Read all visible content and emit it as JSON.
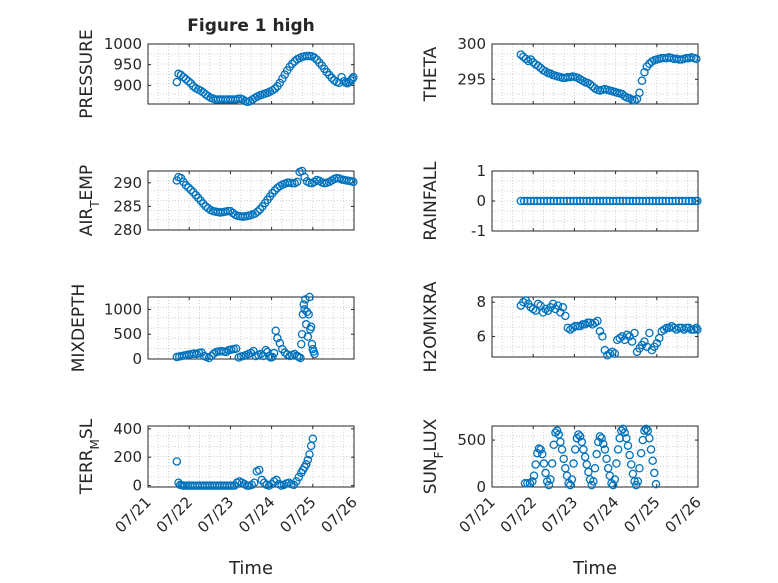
{
  "figure": {
    "title": "Figure 1 high",
    "xlabel": "Time"
  },
  "x_ticks": [
    "07/21",
    "07/22",
    "07/23",
    "07/24",
    "07/25",
    "07/26"
  ],
  "marker_color": "#0072bd",
  "chart_data": [
    {
      "id": "pressure",
      "type": "scatter",
      "ylabel": "PRESSURE",
      "ylabel_sub": "",
      "ylim": [
        855,
        1000
      ],
      "yticks": [
        900,
        950,
        1000
      ],
      "xlim": [
        "07/21",
        "07/26"
      ],
      "x_days": [
        0.7,
        0.74,
        0.8,
        0.86,
        0.92,
        0.98,
        1.04,
        1.1,
        1.16,
        1.22,
        1.28,
        1.34,
        1.4,
        1.46,
        1.52,
        1.58,
        1.64,
        1.7,
        1.76,
        1.82,
        1.88,
        1.94,
        2.0,
        2.06,
        2.12,
        2.18,
        2.24,
        2.3,
        2.36,
        2.42,
        2.48,
        2.54,
        2.6,
        2.66,
        2.72,
        2.78,
        2.84,
        2.9,
        2.96,
        3.02,
        3.08,
        3.14,
        3.2,
        3.26,
        3.32,
        3.38,
        3.44,
        3.5,
        3.56,
        3.62,
        3.68,
        3.74,
        3.8,
        3.86,
        3.92,
        3.98,
        4.04,
        4.1,
        4.16,
        4.22,
        4.28,
        4.34,
        4.4,
        4.46,
        4.52,
        4.58,
        4.64,
        4.7,
        4.76,
        4.8,
        4.84,
        4.88,
        4.92,
        4.96,
        4.985
      ],
      "y": [
        908,
        928,
        925,
        920,
        915,
        910,
        905,
        898,
        893,
        890,
        887,
        883,
        878,
        874,
        870,
        868,
        866,
        866,
        866,
        866,
        866,
        866,
        866,
        866,
        866,
        867,
        868,
        866,
        862,
        860,
        862,
        866,
        870,
        873,
        876,
        878,
        880,
        882,
        885,
        888,
        892,
        898,
        906,
        916,
        926,
        936,
        945,
        952,
        958,
        963,
        966,
        969,
        970,
        971,
        971,
        970,
        967,
        962,
        955,
        948,
        940,
        932,
        925,
        918,
        912,
        908,
        906,
        920,
        910,
        907,
        905,
        908,
        912,
        916,
        920
      ]
    },
    {
      "id": "theta",
      "type": "scatter",
      "ylabel": "THETA",
      "ylabel_sub": "",
      "ylim": [
        291.5,
        300
      ],
      "yticks": [
        295,
        300
      ],
      "xlim": [
        "07/21",
        "07/26"
      ],
      "x_days": [
        0.7,
        0.76,
        0.82,
        0.88,
        0.94,
        1.0,
        1.06,
        1.12,
        1.18,
        1.24,
        1.3,
        1.36,
        1.42,
        1.48,
        1.54,
        1.6,
        1.66,
        1.72,
        1.78,
        1.84,
        1.9,
        1.96,
        2.02,
        2.08,
        2.14,
        2.2,
        2.26,
        2.32,
        2.38,
        2.44,
        2.5,
        2.56,
        2.62,
        2.68,
        2.74,
        2.8,
        2.86,
        2.92,
        2.98,
        3.04,
        3.1,
        3.16,
        3.22,
        3.28,
        3.34,
        3.4,
        3.46,
        3.52,
        3.58,
        3.64,
        3.7,
        3.76,
        3.82,
        3.88,
        3.94,
        4.0,
        4.06,
        4.12,
        4.18,
        4.24,
        4.3,
        4.36,
        4.42,
        4.48,
        4.54,
        4.6,
        4.66,
        4.72,
        4.78,
        4.84,
        4.9,
        4.96
      ],
      "y": [
        298.5,
        298.2,
        297.9,
        297.6,
        297.8,
        297.4,
        297.1,
        296.9,
        296.6,
        296.3,
        296.1,
        295.9,
        295.8,
        295.6,
        295.5,
        295.4,
        295.3,
        295.2,
        295.2,
        295.3,
        295.3,
        295.4,
        295.3,
        295.2,
        295.0,
        294.8,
        294.6,
        294.5,
        294.3,
        294.0,
        293.7,
        293.5,
        293.4,
        293.5,
        293.6,
        293.5,
        293.4,
        293.3,
        293.2,
        293.1,
        293.0,
        292.9,
        292.6,
        292.4,
        292.3,
        292.1,
        292.0,
        292.2,
        293.1,
        294.8,
        296.0,
        296.8,
        297.2,
        297.5,
        297.7,
        297.8,
        297.9,
        298.0,
        298.0,
        298.0,
        298.1,
        298.0,
        297.9,
        297.9,
        297.8,
        297.8,
        297.9,
        298.0,
        298.0,
        298.1,
        298.0,
        297.9
      ]
    },
    {
      "id": "air_temp",
      "type": "scatter",
      "ylabel": "AIR",
      "ylabel_sub": "T",
      "ylabel_rest": "EMP",
      "ylim": [
        280,
        292.5
      ],
      "yticks": [
        280,
        285,
        290
      ],
      "xlim": [
        "07/21",
        "07/26"
      ],
      "x_days": [
        0.7,
        0.74,
        0.8,
        0.86,
        0.92,
        0.98,
        1.04,
        1.1,
        1.16,
        1.22,
        1.28,
        1.34,
        1.4,
        1.46,
        1.52,
        1.58,
        1.64,
        1.7,
        1.76,
        1.82,
        1.88,
        1.94,
        2.0,
        2.06,
        2.12,
        2.18,
        2.24,
        2.3,
        2.36,
        2.42,
        2.48,
        2.54,
        2.6,
        2.66,
        2.72,
        2.78,
        2.84,
        2.9,
        2.96,
        3.02,
        3.08,
        3.14,
        3.2,
        3.26,
        3.32,
        3.38,
        3.44,
        3.5,
        3.56,
        3.62,
        3.68,
        3.74,
        3.8,
        3.86,
        3.92,
        3.98,
        4.04,
        4.1,
        4.16,
        4.22,
        4.28,
        4.34,
        4.4,
        4.46,
        4.52,
        4.58,
        4.64,
        4.7,
        4.76,
        4.82,
        4.88,
        4.94,
        4.985
      ],
      "y": [
        290.5,
        291.2,
        291.0,
        290.2,
        289.5,
        289.0,
        288.5,
        288.0,
        287.4,
        286.8,
        286.2,
        285.6,
        285.0,
        284.6,
        284.2,
        284.0,
        283.9,
        283.8,
        283.7,
        283.8,
        283.9,
        284.0,
        284.0,
        283.6,
        283.2,
        283.0,
        282.9,
        282.8,
        282.9,
        283.0,
        283.1,
        283.3,
        283.5,
        283.9,
        284.4,
        285.0,
        285.7,
        286.4,
        287.1,
        287.8,
        288.4,
        288.9,
        289.3,
        289.6,
        289.8,
        290.0,
        290.0,
        289.9,
        289.9,
        290.2,
        292.3,
        292.8,
        291.2,
        290.3,
        290.0,
        289.9,
        290.2,
        290.6,
        290.4,
        290.1,
        289.9,
        290.0,
        290.2,
        290.5,
        290.8,
        291.0,
        290.9,
        290.7,
        290.6,
        290.5,
        290.4,
        290.3,
        290.2
      ]
    },
    {
      "id": "rainfall",
      "type": "scatter",
      "ylabel": "RAINFALL",
      "ylabel_sub": "",
      "ylim": [
        -1,
        1
      ],
      "yticks": [
        -1,
        0,
        1
      ],
      "xlim": [
        "07/21",
        "07/26"
      ],
      "x_days": [
        0.7,
        0.78,
        0.86,
        0.94,
        1.02,
        1.1,
        1.18,
        1.26,
        1.34,
        1.42,
        1.5,
        1.58,
        1.66,
        1.74,
        1.82,
        1.9,
        1.98,
        2.06,
        2.14,
        2.22,
        2.3,
        2.38,
        2.46,
        2.54,
        2.62,
        2.7,
        2.78,
        2.86,
        2.94,
        3.02,
        3.1,
        3.18,
        3.26,
        3.34,
        3.42,
        3.5,
        3.58,
        3.66,
        3.74,
        3.82,
        3.9,
        3.98,
        4.06,
        4.14,
        4.22,
        4.3,
        4.38,
        4.46,
        4.54,
        4.62,
        4.7,
        4.78,
        4.86,
        4.94,
        4.985
      ],
      "y": [
        0,
        0,
        0,
        0,
        0,
        0,
        0,
        0,
        0,
        0,
        0,
        0,
        0,
        0,
        0,
        0,
        0,
        0,
        0,
        0,
        0,
        0,
        0,
        0,
        0,
        0,
        0,
        0,
        0,
        0,
        0,
        0,
        0,
        0,
        0,
        0,
        0,
        0,
        0,
        0,
        0,
        0,
        0,
        0,
        0,
        0,
        0,
        0,
        0,
        0,
        0,
        0,
        0,
        0,
        0
      ]
    },
    {
      "id": "mixdepth",
      "type": "scatter",
      "ylabel": "MIXDEPTH",
      "ylabel_sub": "",
      "ylim": [
        0,
        1250
      ],
      "yticks": [
        0,
        500,
        1000
      ],
      "xlim": [
        "07/21",
        "07/26"
      ],
      "x_days": [
        0.7,
        0.76,
        0.82,
        0.88,
        0.94,
        1.0,
        1.06,
        1.12,
        1.18,
        1.24,
        1.3,
        1.36,
        1.42,
        1.48,
        1.54,
        1.6,
        1.66,
        1.72,
        1.78,
        1.84,
        1.9,
        1.96,
        2.02,
        2.08,
        2.14,
        2.2,
        2.26,
        2.32,
        2.38,
        2.44,
        2.5,
        2.56,
        2.62,
        2.68,
        2.74,
        2.8,
        2.86,
        2.9,
        2.94,
        2.98,
        3.02,
        3.06,
        3.1,
        3.14,
        3.2,
        3.26,
        3.32,
        3.38,
        3.44,
        3.5,
        3.56,
        3.62,
        3.66,
        3.7,
        3.72,
        3.74,
        3.76,
        3.78,
        3.8,
        3.82,
        3.84,
        3.86,
        3.88,
        3.9,
        3.92,
        3.94,
        3.96,
        3.98,
        4.0,
        4.02,
        4.04
      ],
      "y": [
        40,
        50,
        60,
        70,
        80,
        90,
        100,
        110,
        100,
        120,
        130,
        60,
        40,
        20,
        60,
        110,
        140,
        150,
        160,
        150,
        140,
        180,
        190,
        200,
        210,
        30,
        50,
        60,
        80,
        100,
        120,
        160,
        60,
        80,
        100,
        60,
        180,
        140,
        60,
        30,
        40,
        120,
        570,
        420,
        320,
        200,
        130,
        90,
        60,
        80,
        100,
        60,
        40,
        20,
        300,
        500,
        900,
        1100,
        1000,
        1200,
        700,
        950,
        450,
        900,
        1250,
        600,
        650,
        300,
        200,
        150,
        100
      ]
    },
    {
      "id": "h2omixra",
      "type": "scatter",
      "ylabel": "H2OMIXRA",
      "ylabel_sub": "",
      "ylim": [
        4.8,
        8.3
      ],
      "yticks": [
        6,
        8
      ],
      "xlim": [
        "07/21",
        "07/26"
      ],
      "x_days": [
        0.7,
        0.76,
        0.82,
        0.88,
        0.94,
        1.0,
        1.06,
        1.12,
        1.18,
        1.24,
        1.3,
        1.36,
        1.42,
        1.48,
        1.54,
        1.6,
        1.66,
        1.72,
        1.78,
        1.84,
        1.9,
        1.96,
        2.02,
        2.08,
        2.14,
        2.2,
        2.26,
        2.32,
        2.38,
        2.44,
        2.5,
        2.56,
        2.62,
        2.68,
        2.74,
        2.8,
        2.86,
        2.92,
        2.98,
        3.04,
        3.1,
        3.16,
        3.22,
        3.28,
        3.34,
        3.4,
        3.46,
        3.52,
        3.58,
        3.64,
        3.7,
        3.76,
        3.82,
        3.88,
        3.94,
        4.0,
        4.06,
        4.12,
        4.18,
        4.24,
        4.3,
        4.36,
        4.42,
        4.48,
        4.54,
        4.6,
        4.66,
        4.72,
        4.78,
        4.84,
        4.9,
        4.96,
        4.985
      ],
      "y": [
        7.8,
        8.0,
        8.1,
        7.9,
        7.7,
        7.6,
        7.5,
        7.9,
        7.8,
        7.4,
        7.6,
        7.5,
        7.7,
        7.9,
        7.6,
        7.8,
        7.4,
        7.7,
        7.2,
        6.5,
        6.4,
        6.5,
        6.6,
        6.6,
        6.6,
        6.7,
        6.7,
        6.8,
        6.8,
        6.7,
        6.8,
        6.9,
        6.3,
        6.0,
        5.2,
        4.9,
        5.0,
        5.1,
        5.0,
        5.8,
        5.9,
        6.0,
        5.8,
        6.1,
        6.0,
        5.7,
        6.2,
        5.1,
        5.3,
        5.5,
        5.7,
        5.4,
        6.2,
        5.2,
        5.4,
        5.6,
        5.9,
        6.3,
        6.4,
        6.5,
        6.5,
        6.6,
        6.5,
        6.4,
        6.5,
        6.5,
        6.4,
        6.5,
        6.5,
        6.4,
        6.4,
        6.5,
        6.4
      ]
    },
    {
      "id": "terr_msl",
      "type": "scatter",
      "ylabel": "TERR",
      "ylabel_sub": "M",
      "ylabel_rest": "SL",
      "ylim": [
        -10,
        420
      ],
      "yticks": [
        0,
        200,
        400
      ],
      "xlim": [
        "07/21",
        "07/26"
      ],
      "x_days": [
        0.7,
        0.74,
        0.78,
        0.82,
        0.86,
        0.9,
        0.96,
        1.02,
        1.08,
        1.14,
        1.2,
        1.26,
        1.32,
        1.38,
        1.44,
        1.5,
        1.56,
        1.62,
        1.68,
        1.74,
        1.8,
        1.86,
        1.92,
        1.98,
        2.04,
        2.1,
        2.16,
        2.22,
        2.28,
        2.34,
        2.4,
        2.46,
        2.52,
        2.58,
        2.64,
        2.7,
        2.76,
        2.82,
        2.88,
        2.94,
        3.0,
        3.06,
        3.12,
        3.18,
        3.24,
        3.3,
        3.36,
        3.42,
        3.48,
        3.54,
        3.6,
        3.66,
        3.72,
        3.76,
        3.8,
        3.84,
        3.88,
        3.92,
        3.96,
        4.0
      ],
      "y": [
        170,
        20,
        5,
        2,
        0,
        0,
        0,
        0,
        0,
        0,
        0,
        0,
        0,
        0,
        0,
        0,
        0,
        0,
        0,
        0,
        0,
        0,
        0,
        0,
        0,
        0,
        20,
        30,
        20,
        10,
        0,
        0,
        5,
        20,
        100,
        110,
        40,
        20,
        5,
        0,
        10,
        30,
        40,
        10,
        0,
        5,
        15,
        20,
        10,
        5,
        30,
        60,
        90,
        110,
        130,
        150,
        180,
        220,
        280,
        330
      ]
    },
    {
      "id": "sun_flux",
      "type": "scatter",
      "ylabel": "SUN",
      "ylabel_sub": "F",
      "ylabel_rest": "LUX",
      "ylim": [
        0,
        650
      ],
      "yticks": [
        0,
        500
      ],
      "xlim": [
        "07/21",
        "07/26"
      ],
      "x_days": [
        0.8,
        0.86,
        0.92,
        0.98,
        1.02,
        1.06,
        1.1,
        1.14,
        1.18,
        1.22,
        1.26,
        1.3,
        1.34,
        1.38,
        1.42,
        1.46,
        1.5,
        1.54,
        1.58,
        1.62,
        1.66,
        1.7,
        1.74,
        1.78,
        1.82,
        1.86,
        1.9,
        1.94,
        1.98,
        2.02,
        2.06,
        2.1,
        2.14,
        2.18,
        2.22,
        2.26,
        2.3,
        2.34,
        2.38,
        2.42,
        2.46,
        2.5,
        2.54,
        2.58,
        2.62,
        2.66,
        2.7,
        2.74,
        2.78,
        2.82,
        2.86,
        2.9,
        2.94,
        2.98,
        3.02,
        3.06,
        3.1,
        3.14,
        3.18,
        3.22,
        3.26,
        3.3,
        3.34,
        3.38,
        3.42,
        3.46,
        3.5,
        3.54,
        3.58,
        3.62,
        3.66,
        3.7,
        3.74,
        3.78,
        3.82,
        3.86,
        3.9,
        3.94,
        3.98
      ],
      "y": [
        40,
        40,
        40,
        60,
        120,
        240,
        360,
        410,
        400,
        350,
        250,
        150,
        60,
        20,
        80,
        250,
        450,
        580,
        600,
        560,
        480,
        400,
        300,
        200,
        120,
        40,
        20,
        80,
        250,
        400,
        520,
        560,
        540,
        480,
        400,
        320,
        240,
        160,
        80,
        20,
        60,
        200,
        350,
        480,
        540,
        520,
        460,
        400,
        300,
        200,
        120,
        40,
        20,
        80,
        250,
        400,
        520,
        600,
        620,
        580,
        520,
        440,
        340,
        240,
        140,
        60,
        20,
        60,
        200,
        360,
        500,
        600,
        620,
        600,
        520,
        400,
        280,
        150,
        30
      ]
    }
  ]
}
